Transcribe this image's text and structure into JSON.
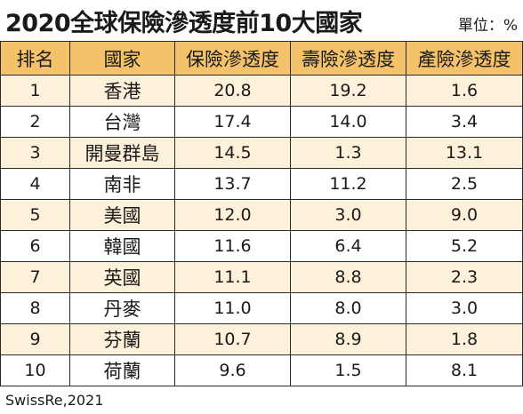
{
  "header": {
    "title": "2020全球保險滲透度前10大國家",
    "unit": "單位：%"
  },
  "chart_data": {
    "type": "table",
    "title": "2020全球保險滲透度前10大國家",
    "unit": "單位：%",
    "columns": [
      "排名",
      "國家",
      "保險滲透度",
      "壽險滲透度",
      "產險滲透度"
    ],
    "rows": [
      {
        "rank": "1",
        "country": "香港",
        "insurance": "20.8",
        "life": "19.2",
        "non_life": "1.6"
      },
      {
        "rank": "2",
        "country": "台灣",
        "insurance": "17.4",
        "life": "14.0",
        "non_life": "3.4"
      },
      {
        "rank": "3",
        "country": "開曼群島",
        "insurance": "14.5",
        "life": "1.3",
        "non_life": "13.1"
      },
      {
        "rank": "4",
        "country": "南非",
        "insurance": "13.7",
        "life": "11.2",
        "non_life": "2.5"
      },
      {
        "rank": "5",
        "country": "美國",
        "insurance": "12.0",
        "life": "3.0",
        "non_life": "9.0"
      },
      {
        "rank": "6",
        "country": "韓國",
        "insurance": "11.6",
        "life": "6.4",
        "non_life": "5.2"
      },
      {
        "rank": "7",
        "country": "英國",
        "insurance": "11.1",
        "life": "8.8",
        "non_life": "2.3"
      },
      {
        "rank": "8",
        "country": "丹麥",
        "insurance": "11.0",
        "life": "8.0",
        "non_life": "3.0"
      },
      {
        "rank": "9",
        "country": "芬蘭",
        "insurance": "10.7",
        "life": "8.9",
        "non_life": "1.8"
      },
      {
        "rank": "10",
        "country": "荷蘭",
        "insurance": "9.6",
        "life": "1.5",
        "non_life": "8.1"
      }
    ],
    "source": "SwissRe,2021"
  },
  "colors": {
    "header_bg": "#f3c26a",
    "stripe_bg": "#fdf1da",
    "border": "#2a2a2a"
  }
}
